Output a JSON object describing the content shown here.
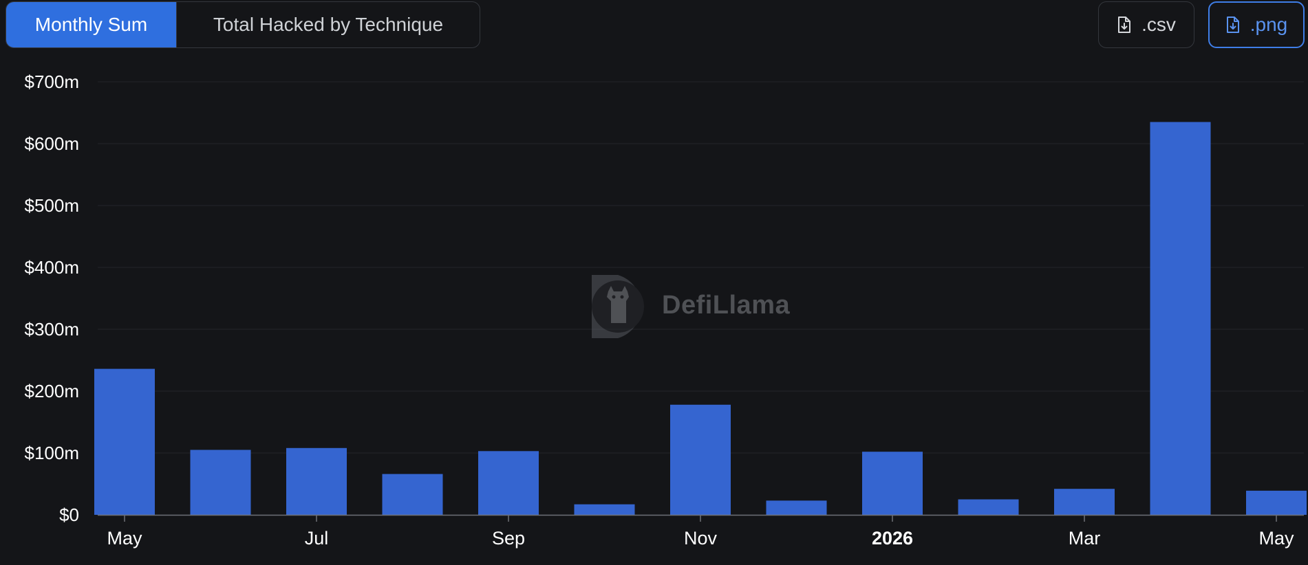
{
  "tabs": [
    {
      "label": "Monthly Sum",
      "active": true
    },
    {
      "label": "Total Hacked by Technique",
      "active": false
    }
  ],
  "downloads": {
    "csv_label": ".csv",
    "png_label": ".png",
    "icon": "file-download-icon"
  },
  "watermark": {
    "text": "DefiLlama"
  },
  "colors": {
    "bar": "#3565d0",
    "accent": "#2f6fdf",
    "background": "#141518",
    "grid": "#23252a"
  },
  "chart_data": {
    "type": "bar",
    "title": "",
    "xlabel": "",
    "ylabel": "",
    "categories": [
      "2025-05",
      "2025-06",
      "2025-07",
      "2025-08",
      "2025-09",
      "2025-10",
      "2025-11",
      "2025-12",
      "2026-01",
      "2026-02",
      "2026-03",
      "2026-04",
      "2026-05"
    ],
    "values": [
      236,
      105,
      108,
      66,
      103,
      17,
      178,
      23,
      102,
      25,
      42,
      635,
      39
    ],
    "unit": "$m",
    "ylim": [
      0,
      700
    ],
    "yticks": [
      "$0",
      "$100m",
      "$200m",
      "$300m",
      "$400m",
      "$500m",
      "$600m",
      "$700m"
    ],
    "xtick_labels": [
      {
        "label": "May",
        "category": "2025-05",
        "bold": false
      },
      {
        "label": "Jul",
        "category": "2025-07",
        "bold": false
      },
      {
        "label": "Sep",
        "category": "2025-09",
        "bold": false
      },
      {
        "label": "Nov",
        "category": "2025-11",
        "bold": false
      },
      {
        "label": "2026",
        "category": "2026-01",
        "bold": true
      },
      {
        "label": "Mar",
        "category": "2026-03",
        "bold": false
      },
      {
        "label": "May",
        "category": "2026-05",
        "bold": false
      }
    ],
    "grid": true,
    "legend": "none"
  }
}
